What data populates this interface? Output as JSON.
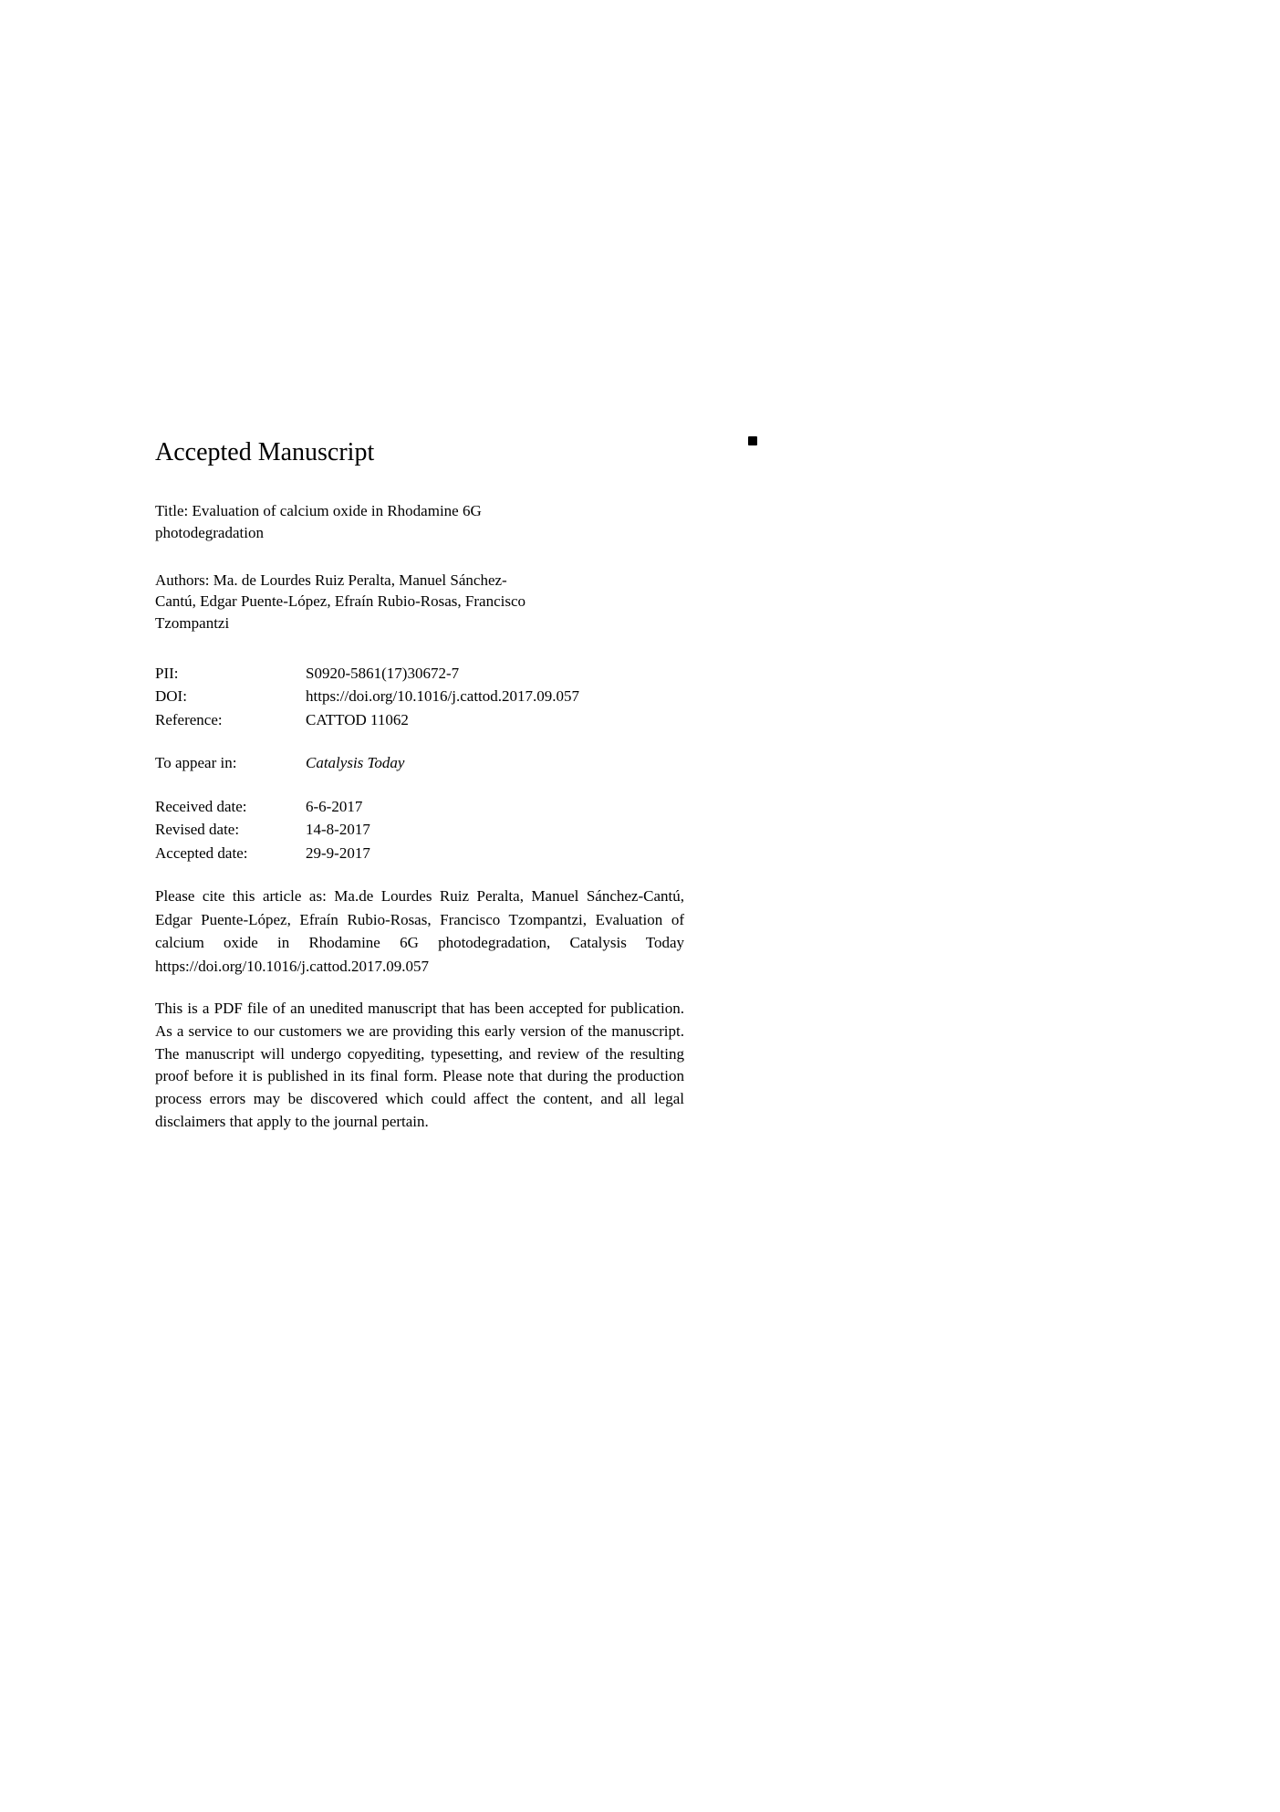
{
  "heading": "Accepted Manuscript",
  "title_label": "Title:",
  "title": "Evaluation of calcium oxide in Rhodamine 6G photodegradation",
  "authors_label": "Authors:",
  "authors": "Ma. de Lourdes Ruiz Peralta, Manuel Sánchez-Cantú, Edgar Puente-López, Efraín Rubio-Rosas, Francisco Tzompantzi",
  "meta": {
    "pii_label": "PII:",
    "pii_value": "S0920-5861(17)30672-7",
    "doi_label": "DOI:",
    "doi_value": "https://doi.org/10.1016/j.cattod.2017.09.057",
    "reference_label": "Reference:",
    "reference_value": "CATTOD 11062",
    "appear_label": "To appear in:",
    "appear_value": "Catalysis Today",
    "received_label": "Received date:",
    "received_value": "6-6-2017",
    "revised_label": "Revised date:",
    "revised_value": "14-8-2017",
    "accepted_label": "Accepted date:",
    "accepted_value": "29-9-2017"
  },
  "citation": "Please cite this article as: Ma.de Lourdes Ruiz Peralta, Manuel Sánchez-Cantú, Edgar Puente-López, Efraín Rubio-Rosas, Francisco Tzompantzi, Evaluation of calcium oxide in Rhodamine 6G photodegradation, Catalysis Today https://doi.org/10.1016/j.cattod.2017.09.057",
  "disclaimer": "This is a PDF file of an unedited manuscript that has been accepted for publication. As a service to our customers we are providing this early version of the manuscript. The manuscript will undergo copyediting, typesetting, and review of the resulting proof before it is published in its final form. Please note that during the production process errors may be discovered which could affect the content, and all legal disclaimers that apply to the journal pertain.",
  "colors": {
    "background": "#ffffff",
    "text": "#000000"
  },
  "typography": {
    "heading_fontsize": 28,
    "body_fontsize": 17,
    "font_family": "Georgia, Times New Roman, serif"
  }
}
